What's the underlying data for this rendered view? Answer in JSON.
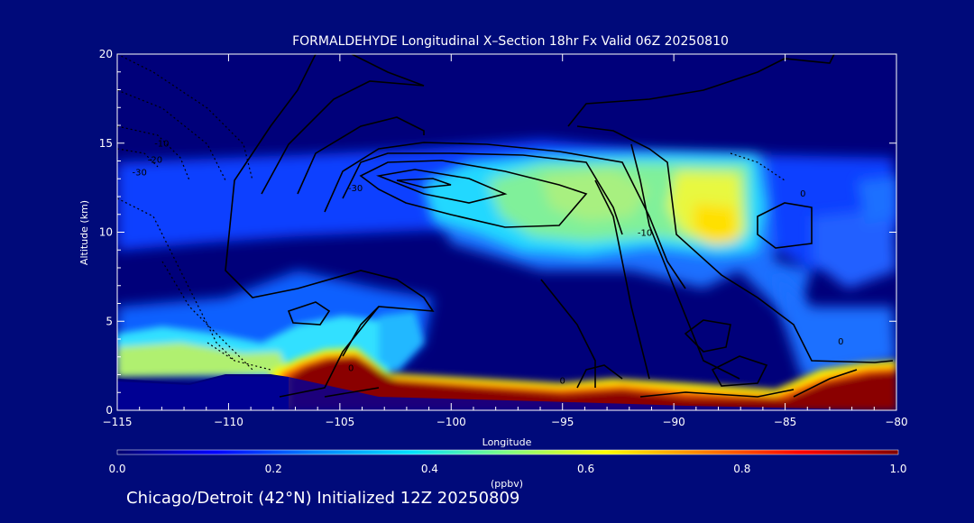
{
  "chart_data": {
    "type": "heatmap",
    "title": "FORMALDEHYDE Longitudinal X–Section 18hr  Fx Valid 06Z 20250810",
    "xlabel": "Longitude",
    "ylabel": "Altitude (km)",
    "xlim": [
      -115,
      -80
    ],
    "ylim": [
      0,
      20
    ],
    "xticks": [
      -115,
      -110,
      -105,
      -100,
      -95,
      -90,
      -85,
      -80
    ],
    "xtick_labels": [
      "−115",
      "−110",
      "−105",
      "−100",
      "−95",
      "−90",
      "−85",
      "−80"
    ],
    "yticks": [
      0,
      5,
      10,
      15,
      20
    ],
    "ytick_labels": [
      "0",
      "5",
      "10",
      "15",
      "20"
    ],
    "colorbar": {
      "label": "(ppbv)",
      "range": [
        0.0,
        1.0
      ],
      "ticks": [
        0.0,
        0.2,
        0.4,
        0.6,
        0.8,
        1.0
      ],
      "tick_labels": [
        "0.0",
        "0.2",
        "0.4",
        "0.6",
        "0.8",
        "1.0"
      ],
      "colors": [
        "#00006f",
        "#0000ff",
        "#0080ff",
        "#00e0ff",
        "#80ff80",
        "#ffff00",
        "#ff8000",
        "#ff0000",
        "#800000"
      ]
    },
    "fields": [
      {
        "name": "background",
        "lon": [
          -115,
          -80
        ],
        "alt": [
          0,
          20
        ],
        "value": 0.02
      },
      {
        "name": "upper-layer",
        "lon": [
          -115,
          -80
        ],
        "alt": [
          10.5,
          14.5
        ],
        "value": 0.2
      },
      {
        "name": "upper-plume",
        "lon": [
          -104,
          -84
        ],
        "alt": [
          7.5,
          14.2
        ],
        "value": 0.45
      },
      {
        "name": "plume-core-east",
        "lon": [
          -90,
          -86.5
        ],
        "alt": [
          9,
          14
        ],
        "value": 0.6
      },
      {
        "name": "plume-core-west",
        "lon": [
          -97,
          -93
        ],
        "alt": [
          10,
          13
        ],
        "value": 0.5
      },
      {
        "name": "western-low-layer",
        "lon": [
          -115,
          -106
        ],
        "alt": [
          1.5,
          4
        ],
        "value": 0.5
      },
      {
        "name": "boundary-layer",
        "lon": [
          -106,
          -80
        ],
        "alt": [
          0,
          2.8
        ],
        "value": 1.0
      }
    ],
    "contour_labels": [
      {
        "lon": -113,
        "alt": 14.8,
        "text": "-10"
      },
      {
        "lon": -113.3,
        "alt": 13.9,
        "text": "-20"
      },
      {
        "lon": -114,
        "alt": 13.2,
        "text": "-30"
      },
      {
        "lon": -104.3,
        "alt": 12.3,
        "text": "-30"
      },
      {
        "lon": -91.3,
        "alt": 9.8,
        "text": "-10"
      },
      {
        "lon": -82.5,
        "alt": 3.7,
        "text": "0"
      },
      {
        "lon": -95,
        "alt": 1.5,
        "text": "0"
      },
      {
        "lon": -104.5,
        "alt": 2.2,
        "text": "0"
      },
      {
        "lon": -84.2,
        "alt": 12,
        "text": "0"
      }
    ]
  },
  "footer": "Chicago/Detroit (42°N) Initialized 12Z 20250809"
}
